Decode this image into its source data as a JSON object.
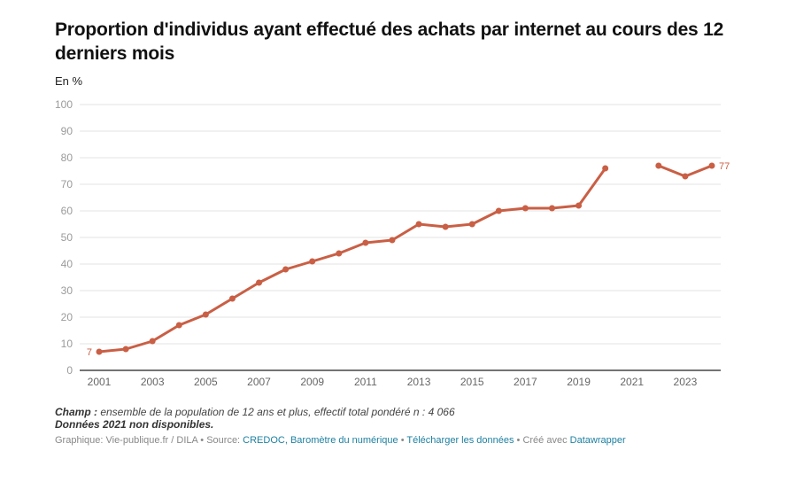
{
  "header": {
    "title": "Proportion d'individus ayant effectué des achats par internet au cours des 12 derniers mois",
    "subtitle": "En %"
  },
  "notes": {
    "champ_label": "Champ :",
    "champ_text": " ensemble de la population de 12 ans et plus, effectif total pondéré n : 4 066",
    "missing_note": "Données 2021 non disponibles."
  },
  "footer": {
    "credit": "Graphique: Vie-publique.fr / DILA",
    "separator": " • ",
    "source_label": "Source: ",
    "source_link": "CREDOC, Baromètre du numérique",
    "download_link": "Télécharger les données",
    "created_label": "Créé avec ",
    "datawrapper_link": "Datawrapper"
  },
  "chart_data": {
    "type": "line",
    "title": "Proportion d'individus ayant effectué des achats par internet au cours des 12 derniers mois",
    "subtitle": "En %",
    "xlabel": "",
    "ylabel": "En %",
    "x": [
      2001,
      2002,
      2003,
      2004,
      2005,
      2006,
      2007,
      2008,
      2009,
      2010,
      2011,
      2012,
      2013,
      2014,
      2015,
      2016,
      2017,
      2018,
      2019,
      2020,
      2021,
      2022,
      2023,
      2024
    ],
    "series": [
      {
        "name": "Achats par internet",
        "color": "#c95f45",
        "values": [
          7,
          8,
          11,
          17,
          21,
          27,
          33,
          38,
          41,
          44,
          48,
          49,
          55,
          54,
          55,
          60,
          61,
          61,
          62,
          76,
          null,
          77,
          73,
          77
        ]
      }
    ],
    "xlim": [
      2000.5,
      2024.5
    ],
    "ylim": [
      0,
      100
    ],
    "yticks": [
      0,
      10,
      20,
      30,
      40,
      50,
      60,
      70,
      80,
      90,
      100
    ],
    "xticks": [
      2001,
      2003,
      2005,
      2007,
      2009,
      2011,
      2013,
      2015,
      2017,
      2019,
      2021,
      2023
    ],
    "grid": true,
    "legend": "none",
    "annotations": [
      {
        "x": 2001,
        "value": 7,
        "text": "7",
        "position": "left"
      },
      {
        "x": 2024,
        "value": 77,
        "text": "77",
        "position": "right"
      }
    ]
  }
}
